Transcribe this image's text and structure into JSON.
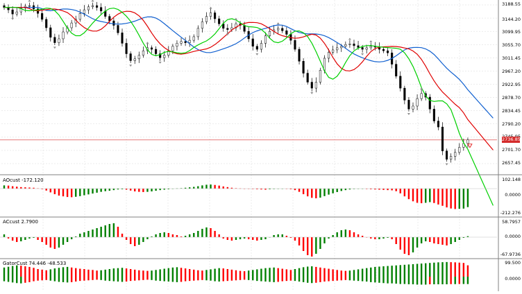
{
  "main_panel": {
    "price_labels": [
      "3188.55",
      "3144.20",
      "3099.95",
      "3055.70",
      "3011.45",
      "2967.20",
      "2922.95",
      "2878.70",
      "2834.45",
      "2790.20",
      "2745.95",
      "2701.70",
      "2657.45"
    ],
    "current_price": "2736.85",
    "current_price_color": "#d42b2b"
  },
  "panels": [
    {
      "title": "AOcust -172.120",
      "scale": [
        "102.148",
        "0.0000",
        "-212.276"
      ]
    },
    {
      "title": "ACcust 2.7900",
      "scale": [
        "58.7957",
        "0.0000",
        "-67.9736"
      ]
    },
    {
      "title": "GatorCust 74.446 -48.533",
      "scale": [
        "99.500",
        "0.0000"
      ]
    }
  ],
  "colors": {
    "bull": "#008000",
    "bear": "#ff0000",
    "ma_fast": "#00d000",
    "ma_mid": "#e00000",
    "ma_slow": "#1060d0",
    "grid": "#d8d8d8",
    "fractal": "#909090"
  },
  "chart_data": {
    "type": "candlestick",
    "close": [
      3180,
      3172,
      3158,
      3165,
      3178,
      3184,
      3186,
      3175,
      3160,
      3140,
      3112,
      3080,
      3062,
      3075,
      3098,
      3112,
      3128,
      3140,
      3160,
      3172,
      3182,
      3186,
      3180,
      3168,
      3150,
      3135,
      3120,
      3095,
      3060,
      3025,
      3002,
      3008,
      3020,
      3035,
      3045,
      3040,
      3025,
      3012,
      3020,
      3035,
      3050,
      3060,
      3066,
      3062,
      3070,
      3082,
      3110,
      3132,
      3150,
      3162,
      3142,
      3125,
      3110,
      3106,
      3112,
      3125,
      3120,
      3100,
      3075,
      3050,
      3040,
      3060,
      3085,
      3100,
      3105,
      3110,
      3102,
      3090,
      3070,
      3040,
      3000,
      2960,
      2930,
      2910,
      2930,
      2970,
      3010,
      3030,
      3038,
      3045,
      3050,
      3056,
      3058,
      3052,
      3046,
      3040,
      3045,
      3050,
      3047,
      3040,
      3035,
      3028,
      2990,
      2950,
      2910,
      2870,
      2840,
      2850,
      2875,
      2892,
      2880,
      2840,
      2800,
      2780,
      2700,
      2672,
      2682,
      2695,
      2712,
      2725,
      2736.85
    ],
    "ao": [
      30,
      28,
      22,
      18,
      14,
      12,
      10,
      8,
      3,
      -5,
      -18,
      -35,
      -52,
      -65,
      -72,
      -78,
      -80,
      -76,
      -70,
      -62,
      -54,
      -46,
      -38,
      -30,
      -24,
      -20,
      -14,
      -8,
      -6,
      -10,
      -18,
      -26,
      -30,
      -32,
      -30,
      -26,
      -20,
      -14,
      -10,
      -6,
      -2,
      2,
      4,
      8,
      12,
      16,
      22,
      30,
      36,
      38,
      34,
      28,
      20,
      14,
      8,
      4,
      2,
      0,
      -2,
      -4,
      -6,
      -8,
      -10,
      -6,
      -4,
      -2,
      -1,
      -2,
      -6,
      -14,
      -30,
      -52,
      -72,
      -86,
      -90,
      -84,
      -70,
      -56,
      -44,
      -32,
      -22,
      -14,
      -8,
      -4,
      -2,
      -2,
      -4,
      -6,
      -8,
      -10,
      -12,
      -14,
      -16,
      -24,
      -44,
      -72,
      -98,
      -118,
      -132,
      -136,
      -132,
      -126,
      -134,
      -148,
      -160,
      -175,
      -185,
      -190,
      -188,
      -186,
      -172.12
    ],
    "ac": [
      8,
      -4,
      -10,
      -14,
      -12,
      -8,
      -4,
      -2,
      -8,
      -14,
      -22,
      -30,
      -34,
      -30,
      -22,
      -14,
      -6,
      2,
      10,
      14,
      18,
      22,
      26,
      30,
      34,
      38,
      40,
      30,
      10,
      -8,
      -20,
      -26,
      -22,
      -14,
      -6,
      2,
      8,
      12,
      14,
      12,
      8,
      6,
      2,
      4,
      8,
      12,
      18,
      24,
      28,
      26,
      18,
      8,
      -4,
      -8,
      -10,
      -8,
      -6,
      -4,
      -6,
      -8,
      -10,
      -8,
      -6,
      0,
      6,
      8,
      8,
      4,
      -2,
      -10,
      -24,
      -40,
      -52,
      -56,
      -48,
      -34,
      -18,
      -4,
      6,
      14,
      20,
      22,
      20,
      14,
      8,
      4,
      0,
      -4,
      -6,
      -6,
      -4,
      -2,
      -6,
      -20,
      -36,
      -48,
      -52,
      -44,
      -30,
      -18,
      -12,
      -14,
      -18,
      -20,
      -22,
      -24,
      -20,
      -14,
      -8,
      -2,
      2.79
    ],
    "gator": [
      [
        60,
        -30
      ],
      [
        65,
        -34
      ],
      [
        70,
        -38
      ],
      [
        74,
        -42
      ],
      [
        72,
        -44
      ],
      [
        68,
        -40
      ],
      [
        64,
        -36
      ],
      [
        58,
        -30
      ],
      [
        50,
        -26
      ],
      [
        46,
        -24
      ],
      [
        42,
        -22
      ],
      [
        48,
        -26
      ],
      [
        54,
        -30
      ],
      [
        58,
        -34
      ],
      [
        62,
        -36
      ],
      [
        64,
        -38
      ],
      [
        60,
        -36
      ],
      [
        56,
        -32
      ],
      [
        52,
        -28
      ],
      [
        50,
        -26
      ],
      [
        46,
        -24
      ],
      [
        44,
        -22
      ],
      [
        40,
        -20
      ],
      [
        42,
        -22
      ],
      [
        46,
        -26
      ],
      [
        50,
        -28
      ],
      [
        54,
        -30
      ],
      [
        56,
        -32
      ],
      [
        58,
        -34
      ],
      [
        54,
        -32
      ],
      [
        50,
        -28
      ],
      [
        46,
        -26
      ],
      [
        42,
        -24
      ],
      [
        40,
        -22
      ],
      [
        38,
        -20
      ],
      [
        40,
        -22
      ],
      [
        44,
        -26
      ],
      [
        48,
        -28
      ],
      [
        52,
        -30
      ],
      [
        56,
        -32
      ],
      [
        60,
        -34
      ],
      [
        62,
        -36
      ],
      [
        58,
        -34
      ],
      [
        54,
        -30
      ],
      [
        50,
        -28
      ],
      [
        46,
        -26
      ],
      [
        42,
        -24
      ],
      [
        40,
        -22
      ],
      [
        44,
        -24
      ],
      [
        48,
        -26
      ],
      [
        52,
        -30
      ],
      [
        56,
        -32
      ],
      [
        54,
        -30
      ],
      [
        50,
        -28
      ],
      [
        46,
        -26
      ],
      [
        42,
        -24
      ],
      [
        38,
        -22
      ],
      [
        36,
        -20
      ],
      [
        40,
        -22
      ],
      [
        44,
        -24
      ],
      [
        48,
        -28
      ],
      [
        52,
        -30
      ],
      [
        56,
        -32
      ],
      [
        58,
        -34
      ],
      [
        60,
        -36
      ],
      [
        56,
        -34
      ],
      [
        52,
        -30
      ],
      [
        48,
        -28
      ],
      [
        44,
        -26
      ],
      [
        50,
        -28
      ],
      [
        56,
        -32
      ],
      [
        62,
        -36
      ],
      [
        66,
        -40
      ],
      [
        68,
        -42
      ],
      [
        64,
        -40
      ],
      [
        60,
        -36
      ],
      [
        56,
        -32
      ],
      [
        52,
        -30
      ],
      [
        48,
        -28
      ],
      [
        44,
        -26
      ],
      [
        40,
        -24
      ],
      [
        38,
        -22
      ],
      [
        40,
        -24
      ],
      [
        44,
        -26
      ],
      [
        48,
        -28
      ],
      [
        52,
        -30
      ],
      [
        56,
        -32
      ],
      [
        60,
        -36
      ],
      [
        64,
        -38
      ],
      [
        66,
        -40
      ],
      [
        68,
        -42
      ],
      [
        70,
        -44
      ],
      [
        72,
        -44
      ],
      [
        74,
        -46
      ],
      [
        76,
        -48
      ],
      [
        78,
        -48
      ],
      [
        80,
        -50
      ],
      [
        82,
        -50
      ],
      [
        84,
        -52
      ],
      [
        86,
        -52
      ],
      [
        88,
        -52
      ],
      [
        90,
        -50
      ],
      [
        92,
        -50
      ],
      [
        94,
        -50
      ],
      [
        95,
        -50
      ],
      [
        96,
        -50
      ],
      [
        95,
        -49
      ],
      [
        94,
        -49
      ],
      [
        92,
        -48
      ],
      [
        90,
        -48
      ],
      [
        74.446,
        -48.533
      ]
    ]
  }
}
